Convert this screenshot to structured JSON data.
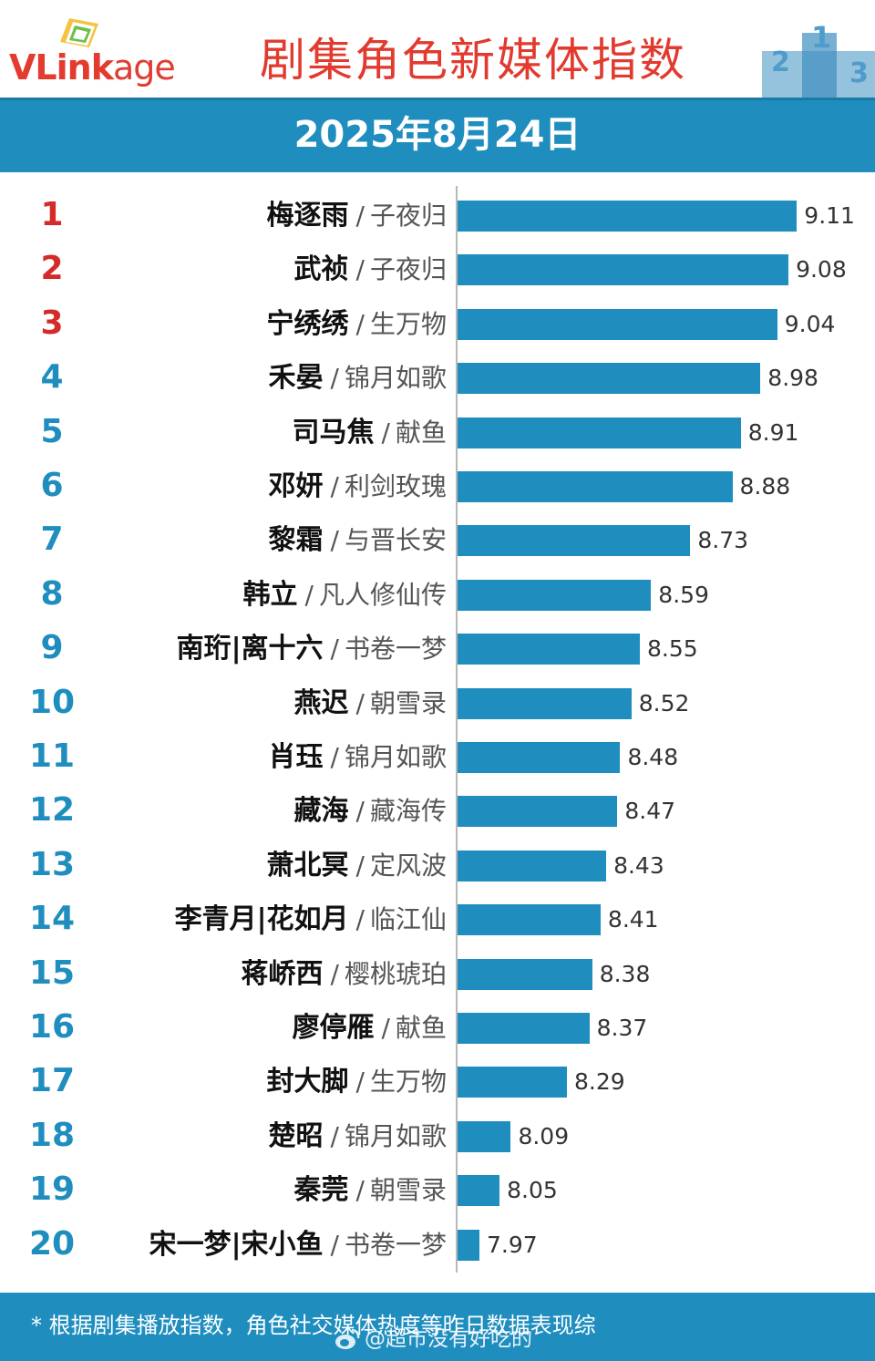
{
  "header": {
    "logo_text_v": "VLink",
    "logo_text_age": "age",
    "title": "剧集角色新媒体指数",
    "date": "2025年8月24日"
  },
  "colors": {
    "bar": "#1f8ebf",
    "top_rank": "#d42a2a",
    "rank": "#1f8ebf",
    "title": "#e23a2e"
  },
  "chart_data": {
    "type": "bar",
    "orientation": "horizontal",
    "title": "剧集角色新媒体指数",
    "subtitle": "2025年8月24日",
    "xlim": [
      7.9,
      9.2
    ],
    "grid": false,
    "rows": [
      {
        "rank": "1",
        "name": "梅逐雨",
        "drama": "子夜归",
        "value": 9.11,
        "value_text": "9.11"
      },
      {
        "rank": "2",
        "name": "武祯",
        "drama": "子夜归",
        "value": 9.08,
        "value_text": "9.08"
      },
      {
        "rank": "3",
        "name": "宁绣绣",
        "drama": "生万物",
        "value": 9.04,
        "value_text": "9.04"
      },
      {
        "rank": "4",
        "name": "禾晏",
        "drama": "锦月如歌",
        "value": 8.98,
        "value_text": "8.98"
      },
      {
        "rank": "5",
        "name": "司马焦",
        "drama": "献鱼",
        "value": 8.91,
        "value_text": "8.91"
      },
      {
        "rank": "6",
        "name": "邓妍",
        "drama": "利剑玫瑰",
        "value": 8.88,
        "value_text": "8.88"
      },
      {
        "rank": "7",
        "name": "黎霜",
        "drama": "与晋长安",
        "value": 8.73,
        "value_text": "8.73"
      },
      {
        "rank": "8",
        "name": "韩立",
        "drama": "凡人修仙传",
        "value": 8.59,
        "value_text": "8.59"
      },
      {
        "rank": "9",
        "name": "南珩|离十六",
        "drama": "书卷一梦",
        "value": 8.55,
        "value_text": "8.55"
      },
      {
        "rank": "10",
        "name": "燕迟",
        "drama": "朝雪录",
        "value": 8.52,
        "value_text": "8.52"
      },
      {
        "rank": "11",
        "name": "肖珏",
        "drama": "锦月如歌",
        "value": 8.48,
        "value_text": "8.48"
      },
      {
        "rank": "12",
        "name": "藏海",
        "drama": "藏海传",
        "value": 8.47,
        "value_text": "8.47"
      },
      {
        "rank": "13",
        "name": "萧北冥",
        "drama": "定风波",
        "value": 8.43,
        "value_text": "8.43"
      },
      {
        "rank": "14",
        "name": "李青月|花如月",
        "drama": "临江仙",
        "value": 8.41,
        "value_text": "8.41"
      },
      {
        "rank": "15",
        "name": "蒋峤西",
        "drama": "樱桃琥珀",
        "value": 8.38,
        "value_text": "8.38"
      },
      {
        "rank": "16",
        "name": "廖停雁",
        "drama": "献鱼",
        "value": 8.37,
        "value_text": "8.37"
      },
      {
        "rank": "17",
        "name": "封大脚",
        "drama": "生万物",
        "value": 8.29,
        "value_text": "8.29"
      },
      {
        "rank": "18",
        "name": "楚昭",
        "drama": "锦月如歌",
        "value": 8.09,
        "value_text": "8.09"
      },
      {
        "rank": "19",
        "name": "秦莞",
        "drama": "朝雪录",
        "value": 8.05,
        "value_text": "8.05"
      },
      {
        "rank": "20",
        "name": "宋一梦|宋小鱼",
        "drama": "书卷一梦",
        "value": 7.97,
        "value_text": "7.97"
      }
    ]
  },
  "footer": {
    "note": "* 根据剧集播放指数，角色社交媒体热度等昨日数据表现综",
    "watermark": "@超市没有好吃的"
  }
}
